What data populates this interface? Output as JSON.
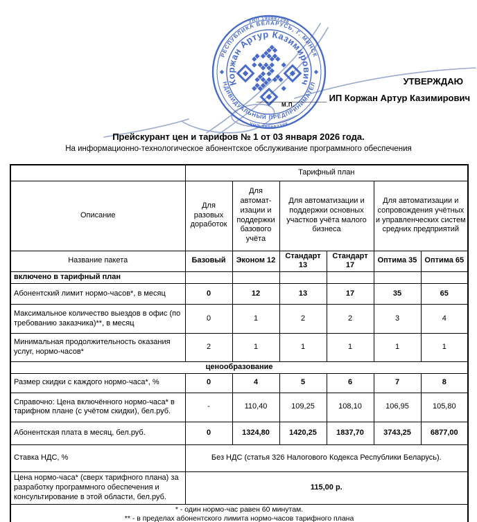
{
  "colors": {
    "stamp": "#3b5fc4",
    "signature": "#8fa0c8"
  },
  "stamp": {
    "unp": "УНП 190887398",
    "outer_top": "РЕСПУБЛИКА БЕЛАРУСЬ, Г. МИНСК",
    "outer_bottom": "ИНДИВИДУАЛЬНЫЙ ПРЕДПРИНИМАТЕЛЬ",
    "inner_arc": "Коржан Артур Казимирович"
  },
  "approval": {
    "approve_label": "УТВЕРЖДАЮ",
    "signature_line": "______________",
    "signer": "ИП Коржан Артур Казимирович",
    "seal_mark": "М.П."
  },
  "doc": {
    "title": "Прейскурант цен и тарифов № 1 от 03 января 2026 года.",
    "subtitle": "На информационно-технологическое абонентское обслуживание программного обеспечения"
  },
  "table": {
    "tariff_plan_header": "Тарифный план",
    "description_header": "Описание",
    "group_headers": [
      "Для разовых доработок",
      "Для автомат-изации и поддержки базового учёта",
      "Для автоматизации и поддержки основных участков учёта малого бизнеса",
      "Для автоматизации и сопровождения учётных и управленческих систем средних предприятий"
    ],
    "package_row_label": "Название пакета",
    "packages": [
      "Базовый",
      "Эконом 12",
      "Стандарт 13",
      "Стандарт 17",
      "Оптима 35",
      "Оптима 65"
    ],
    "section1": "включено в тарифный план",
    "rows1": [
      {
        "label": "Абонентский лимит нормо-часов*, в месяц",
        "values": [
          "0",
          "12",
          "13",
          "17",
          "35",
          "65"
        ]
      },
      {
        "label": "Максимальное количество выездов в офис (по требованию заказчика)**, в месяц",
        "values": [
          "0",
          "1",
          "2",
          "2",
          "3",
          "4"
        ]
      },
      {
        "label": "Минимальная продолжительность оказания услуг, нормо-часов*",
        "values": [
          "2",
          "1",
          "1",
          "1",
          "1",
          "1"
        ]
      }
    ],
    "section2": "ценообразование",
    "rows2": [
      {
        "label": "Размер скидки с каждого нормо-часа*, %",
        "values": [
          "0",
          "4",
          "5",
          "6",
          "7",
          "8"
        ]
      },
      {
        "label": "Справочно: Цена включённого нормо-часа* в тарифном плане (с учётом скидки), бел.руб.",
        "values": [
          "-",
          "110,40",
          "109,25",
          "108,10",
          "106,95",
          "105,80"
        ]
      },
      {
        "label": "Абонентская плата в месяц, бел.руб.",
        "values": [
          "0",
          "1324,80",
          "1420,25",
          "1837,70",
          "3743,25",
          "6877,00"
        ]
      }
    ],
    "vat_row": {
      "label": "Ставка НДС, %",
      "value": "Без НДС (статья 326 Налогового Кодекса Республики Беларусь)."
    },
    "rate_row": {
      "label": "Цена нормо-часа* (сверх тарифного плана) за разработку программного обеспечения и консультирование в этой области, бел.руб.",
      "value": "115,00 р."
    },
    "footnotes": [
      "* - один нормо-час равен 60 минутам.",
      "** - в пределах абонентского лимита нормо-часов тарифного плана"
    ]
  }
}
